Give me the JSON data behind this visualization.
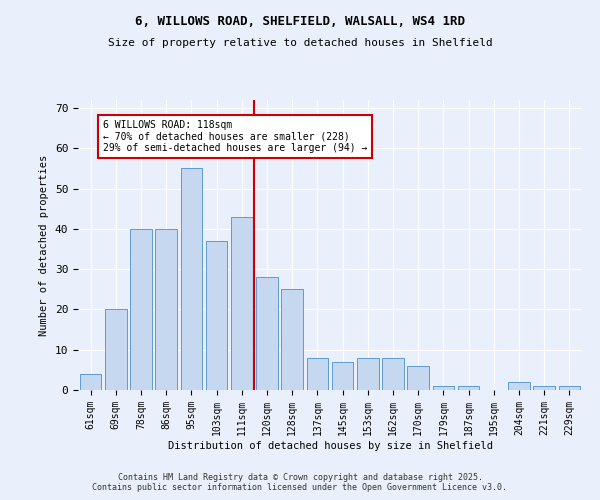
{
  "title_line1": "6, WILLOWS ROAD, SHELFIELD, WALSALL, WS4 1RD",
  "title_line2": "Size of property relative to detached houses in Shelfield",
  "xlabel": "Distribution of detached houses by size in Shelfield",
  "ylabel": "Number of detached properties",
  "categories": [
    "61sqm",
    "69sqm",
    "78sqm",
    "86sqm",
    "95sqm",
    "103sqm",
    "111sqm",
    "120sqm",
    "128sqm",
    "137sqm",
    "145sqm",
    "153sqm",
    "162sqm",
    "170sqm",
    "179sqm",
    "187sqm",
    "195sqm",
    "204sqm",
    "221sqm",
    "229sqm"
  ],
  "values": [
    4,
    20,
    40,
    40,
    55,
    37,
    43,
    28,
    25,
    8,
    7,
    8,
    8,
    6,
    1,
    1,
    0,
    2,
    1,
    1
  ],
  "bar_color": "#c5d8f0",
  "bar_edge_color": "#5b9bd5",
  "background_color": "#eaf0fb",
  "grid_color": "#ffffff",
  "vline_x_index": 7,
  "vline_color": "#cc0000",
  "annotation_text": "6 WILLOWS ROAD: 118sqm\n← 70% of detached houses are smaller (228)\n29% of semi-detached houses are larger (94) →",
  "annotation_box_color": "#cc0000",
  "footer_text": "Contains HM Land Registry data © Crown copyright and database right 2025.\nContains public sector information licensed under the Open Government Licence v3.0.",
  "ylim": [
    0,
    72
  ],
  "yticks": [
    0,
    10,
    20,
    30,
    40,
    50,
    60,
    70
  ]
}
